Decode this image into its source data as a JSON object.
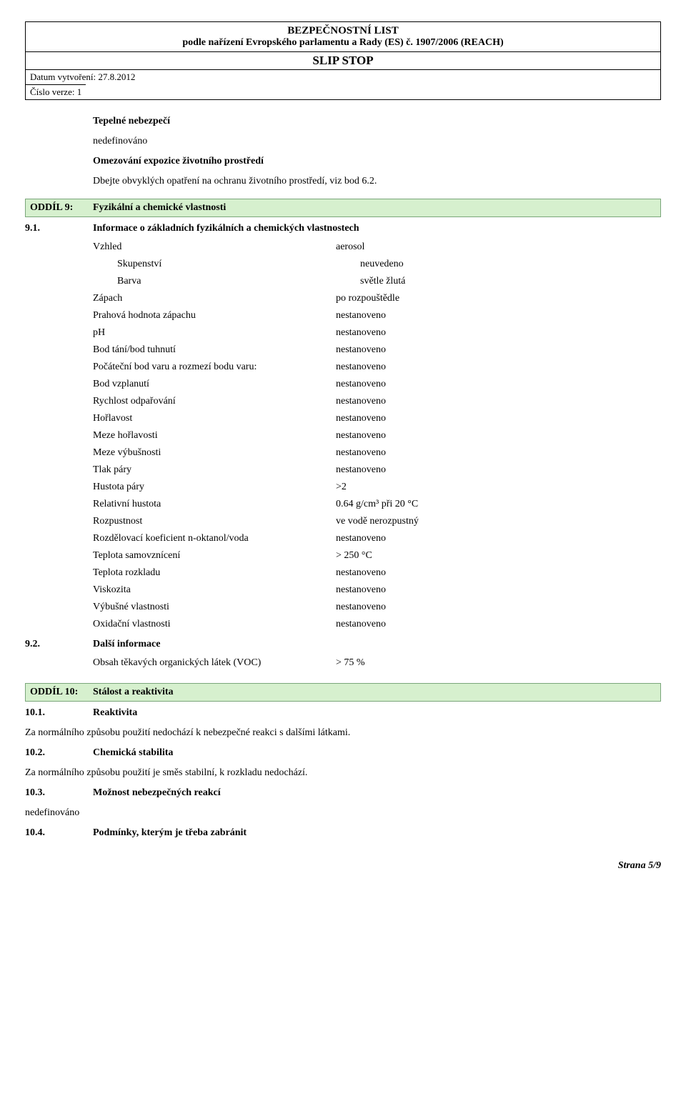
{
  "header": {
    "title1": "BEZPEČNOSTNÍ LIST",
    "title2": "podle nařízení Evropského parlamentu a Rady (ES) č. 1907/2006 (REACH)",
    "product": "SLIP STOP",
    "date_label": "Datum vytvoření: 27.8.2012",
    "version_label": "Číslo verze: 1"
  },
  "intro": {
    "thermal_title": "Tepelné nebezpečí",
    "thermal_val": "nedefinováno",
    "expo_title": "Omezování expozice životního prostředí",
    "expo_text": "Dbejte obvyklých opatření na ochranu životního prostředí, viz bod 6.2."
  },
  "section9": {
    "num": "ODDÍL 9:",
    "title": "Fyzikální a chemické vlastnosti",
    "sub1_num": "9.1.",
    "sub1_title": "Informace o základních fyzikálních a chemických vlastnostech",
    "props": [
      {
        "label": "Vzhled",
        "value": "aerosol",
        "sub": false
      },
      {
        "label": "Skupenství",
        "value": "neuvedeno",
        "sub": true
      },
      {
        "label": "Barva",
        "value": "světle žlutá",
        "sub": true
      },
      {
        "label": "Zápach",
        "value": "po rozpouštědle",
        "sub": false
      },
      {
        "label": "Prahová hodnota zápachu",
        "value": "nestanoveno",
        "sub": false
      },
      {
        "label": "pH",
        "value": "nestanoveno",
        "sub": false
      },
      {
        "label": "Bod tání/bod tuhnutí",
        "value": "nestanoveno",
        "sub": false
      },
      {
        "label": "Počáteční bod varu a rozmezí bodu varu:",
        "value": "nestanoveno",
        "sub": false
      },
      {
        "label": "Bod vzplanutí",
        "value": "nestanoveno",
        "sub": false
      },
      {
        "label": "Rychlost odpařování",
        "value": "nestanoveno",
        "sub": false
      },
      {
        "label": "Hořlavost",
        "value": "nestanoveno",
        "sub": false
      },
      {
        "label": "Meze hořlavosti",
        "value": "nestanoveno",
        "sub": false
      },
      {
        "label": "Meze výbušnosti",
        "value": "nestanoveno",
        "sub": false
      },
      {
        "label": "Tlak páry",
        "value": "nestanoveno",
        "sub": false
      },
      {
        "label": "Hustota páry",
        "value": ">2",
        "sub": false
      },
      {
        "label": "Relativní hustota",
        "value": "0.64 g/cm³ při 20 °C",
        "sub": false
      },
      {
        "label": "Rozpustnost",
        "value": "ve vodě nerozpustný",
        "sub": false
      },
      {
        "label": "Rozdělovací koeficient n-oktanol/voda",
        "value": "nestanoveno",
        "sub": false
      },
      {
        "label": "Teplota samovznícení",
        "value": "> 250 °C",
        "sub": false
      },
      {
        "label": "Teplota rozkladu",
        "value": "nestanoveno",
        "sub": false
      },
      {
        "label": "Viskozita",
        "value": "nestanoveno",
        "sub": false
      },
      {
        "label": "Výbušné vlastnosti",
        "value": "nestanoveno",
        "sub": false
      },
      {
        "label": "Oxidační vlastnosti",
        "value": "nestanoveno",
        "sub": false
      }
    ],
    "sub2_num": "9.2.",
    "sub2_title": "Další informace",
    "voc_label": "Obsah těkavých organických látek (VOC)",
    "voc_value": "> 75 %"
  },
  "section10": {
    "num": "ODDÍL 10:",
    "title": "Stálost a reaktivita",
    "items": [
      {
        "num": "10.1.",
        "title": "Reaktivita",
        "text": "Za normálního způsobu použití nedochází k nebezpečné reakci s dalšími látkami."
      },
      {
        "num": "10.2.",
        "title": "Chemická stabilita",
        "text": "Za normálního způsobu použití je směs stabilní, k rozkladu nedochází."
      },
      {
        "num": "10.3.",
        "title": "Možnost nebezpečných reakcí",
        "text": "nedefinováno"
      },
      {
        "num": "10.4.",
        "title": "Podmínky, kterým je třeba zabránit",
        "text": ""
      }
    ]
  },
  "footer": "Strana 5/9",
  "colors": {
    "section_bg": "#d6f0ce",
    "section_border": "#7aa67a"
  }
}
